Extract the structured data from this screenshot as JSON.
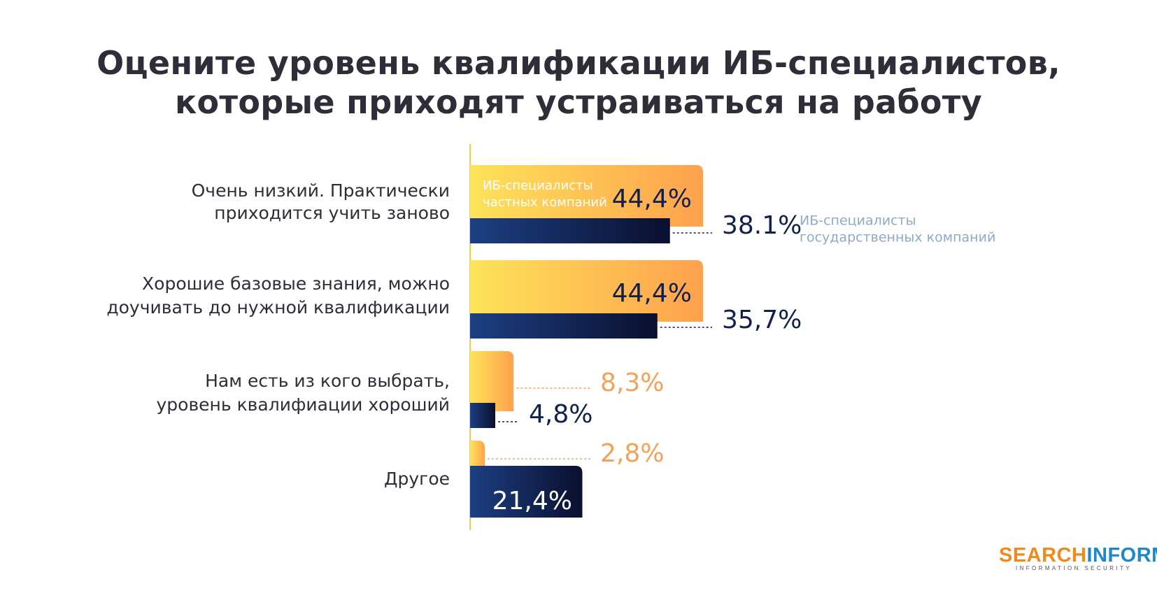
{
  "title": {
    "line1": "Оцените уровень квалификации ИБ-специалистов,",
    "line2": "которые приходят устраиваться на работу"
  },
  "chart_data": {
    "type": "bar",
    "orientation": "horizontal",
    "categories": [
      [
        "Очень низкий. Практически",
        "приходится учить заново"
      ],
      [
        "Хорошие базовые знания, можно",
        "доучивать до нужной квалификации"
      ],
      [
        "Нам есть из кого выбрать,",
        "уровень квалифиации хороший"
      ],
      [
        "Другое"
      ]
    ],
    "series": [
      {
        "name": "ИБ-специалисты частных компаний",
        "legend_lines": [
          "ИБ-специалисты",
          "частных компаний"
        ],
        "values": [
          44.4,
          44.4,
          8.3,
          2.8
        ],
        "labels": [
          "44,4%",
          "44,4%",
          "8,3%",
          "2,8%"
        ],
        "color_start": "#fde35a",
        "color_end": "#ffa14d",
        "label_color": "#f3a257"
      },
      {
        "name": "ИБ-специалисты государственных компаний",
        "legend_lines": [
          "ИБ-специалисты",
          "государственных компаний"
        ],
        "values": [
          38.1,
          35.7,
          4.8,
          21.4
        ],
        "labels": [
          "38.1%",
          "35,7%",
          "4,8%",
          "21,4%"
        ],
        "color_start": "#1d3f82",
        "color_end": "#0a0f2e",
        "label_color": "#12204c"
      }
    ],
    "xlim": [
      0,
      44.4
    ],
    "axis_color": "#f5c84c",
    "legend_color_series2": "#8fa9c8"
  },
  "logo": {
    "part1": "SEARCH",
    "part2": "INFORM",
    "subtitle": "INFORMATION SECURITY"
  }
}
